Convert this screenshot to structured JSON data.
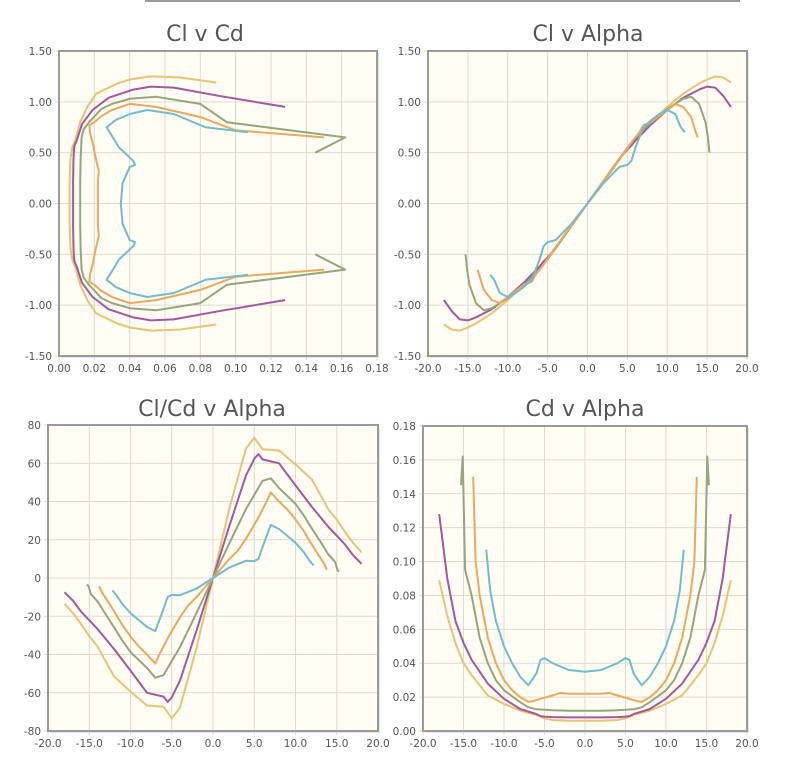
{
  "colors": {
    "yellow": "#e6c475",
    "purple": "#a4599c",
    "olive": "#96a67c",
    "orange": "#eaa95c",
    "teal": "#72bccb",
    "plot_bg": "#fffdf4"
  },
  "chart_data": {
    "type": "line",
    "series_note_mirror": true,
    "series": [
      {
        "name": "yellow",
        "color": "#e6c475",
        "alpha": [
          0,
          2,
          4,
          5,
          6,
          8,
          10,
          12,
          14,
          15,
          16,
          17,
          18
        ],
        "cl": [
          0,
          0.22,
          0.44,
          0.55,
          0.64,
          0.8,
          0.95,
          1.08,
          1.18,
          1.22,
          1.25,
          1.24,
          1.19
        ],
        "cd": [
          0.006,
          0.006,
          0.0065,
          0.0075,
          0.0095,
          0.012,
          0.016,
          0.021,
          0.033,
          0.04,
          0.052,
          0.068,
          0.089
        ]
      },
      {
        "name": "purple",
        "color": "#a4599c",
        "alpha": [
          0,
          2,
          4,
          5,
          5.5,
          6,
          8,
          10,
          12,
          14,
          15,
          16,
          17,
          18
        ],
        "cl": [
          0,
          0.22,
          0.44,
          0.53,
          0.57,
          0.62,
          0.78,
          0.92,
          1.04,
          1.12,
          1.15,
          1.14,
          1.06,
          0.95
        ],
        "cd": [
          0.008,
          0.008,
          0.0082,
          0.0085,
          0.0088,
          0.01,
          0.013,
          0.019,
          0.028,
          0.042,
          0.052,
          0.065,
          0.09,
          0.128
        ]
      },
      {
        "name": "olive",
        "color": "#96a67c",
        "alpha": [
          0,
          2,
          4,
          6,
          7,
          8,
          10,
          11,
          12,
          13,
          14,
          14.8,
          15.1,
          15.3
        ],
        "cl": [
          0,
          0.22,
          0.44,
          0.65,
          0.73,
          0.8,
          0.93,
          0.98,
          1.03,
          1.05,
          0.98,
          0.8,
          0.65,
          0.5
        ],
        "cd": [
          0.012,
          0.012,
          0.0122,
          0.0128,
          0.014,
          0.017,
          0.024,
          0.03,
          0.04,
          0.055,
          0.08,
          0.095,
          0.162,
          0.145
        ]
      },
      {
        "name": "orange",
        "color": "#eaa95c",
        "alpha": [
          0,
          2,
          3,
          4,
          5.5,
          6.5,
          7,
          8,
          9,
          10,
          11,
          12,
          13,
          13.5,
          13.8
        ],
        "cl": [
          0,
          0.22,
          0.32,
          0.43,
          0.6,
          0.7,
          0.77,
          0.8,
          0.86,
          0.92,
          0.98,
          0.95,
          0.85,
          0.72,
          0.65
        ],
        "cd": [
          0.022,
          0.022,
          0.0225,
          0.021,
          0.019,
          0.0175,
          0.0172,
          0.02,
          0.024,
          0.03,
          0.04,
          0.055,
          0.08,
          0.1,
          0.15
        ]
      },
      {
        "name": "teal",
        "color": "#72bccb",
        "alpha": [
          0,
          2,
          4,
          5,
          5.5,
          6,
          7,
          8,
          9,
          10,
          11,
          11.7,
          12.2
        ],
        "cl": [
          0,
          0.2,
          0.36,
          0.38,
          0.42,
          0.55,
          0.75,
          0.82,
          0.88,
          0.92,
          0.88,
          0.75,
          0.7
        ],
        "cd": [
          0.035,
          0.036,
          0.04,
          0.043,
          0.042,
          0.034,
          0.027,
          0.032,
          0.04,
          0.05,
          0.065,
          0.083,
          0.107
        ]
      }
    ],
    "charts": [
      {
        "title": "Cl v Cd",
        "x": "cd",
        "y": "cl",
        "xlim": [
          0,
          0.18
        ],
        "ylim": [
          -1.5,
          1.5
        ],
        "xticks": [
          "0.00",
          "0.02",
          "0.04",
          "0.06",
          "0.08",
          "0.10",
          "0.12",
          "0.14",
          "0.16",
          "0.18"
        ],
        "yticks": [
          "-1.50",
          "-1.00",
          "-0.50",
          "0.00",
          "0.50",
          "1.00",
          "1.50"
        ]
      },
      {
        "title": "Cl v Alpha",
        "x": "alpha",
        "y": "cl",
        "xlim": [
          -20,
          20
        ],
        "ylim": [
          -1.5,
          1.5
        ],
        "xticks": [
          "-20.0",
          "-15.0",
          "-10.0",
          "-5.0",
          "0.0",
          "5.0",
          "10.0",
          "15.0",
          "20.0"
        ],
        "yticks": [
          "-1.50",
          "-1.00",
          "-0.50",
          "0.00",
          "0.50",
          "1.00",
          "1.50"
        ]
      },
      {
        "title": "Cl/Cd v Alpha",
        "x": "alpha",
        "y": "clcd",
        "xlim": [
          -20,
          20
        ],
        "ylim": [
          -80,
          80
        ],
        "xticks": [
          "-20.0",
          "-15.0",
          "-10.0",
          "-5.0",
          "0.0",
          "5.0",
          "10.0",
          "15.0",
          "20.0"
        ],
        "yticks": [
          "-80",
          "-60",
          "-40",
          "-20",
          "0",
          "20",
          "40",
          "60",
          "80"
        ]
      },
      {
        "title": "Cd v Alpha",
        "x": "alpha",
        "y": "cd",
        "xlim": [
          -20,
          20
        ],
        "ylim": [
          0,
          0.18
        ],
        "xticks": [
          "-20.0",
          "-15.0",
          "-10.0",
          "-5.0",
          "0.0",
          "5.0",
          "10.0",
          "15.0",
          "20.0"
        ],
        "yticks": [
          "0.00",
          "0.02",
          "0.04",
          "0.06",
          "0.08",
          "0.10",
          "0.12",
          "0.14",
          "0.16",
          "0.18"
        ]
      }
    ]
  }
}
